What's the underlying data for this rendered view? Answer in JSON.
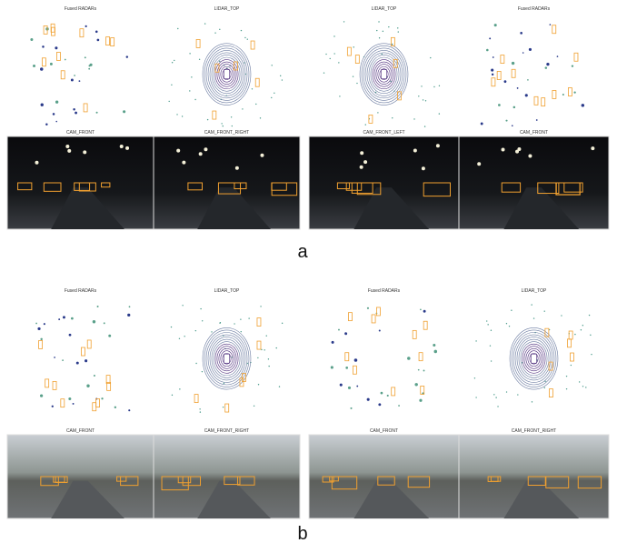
{
  "panels": [
    {
      "label": "a",
      "figures": [
        {
          "plots": [
            "Fused RADARs",
            "LIDAR_TOP"
          ],
          "cameras": [
            "CAM_FRONT",
            "CAM_FRONT_RIGHT"
          ]
        },
        {
          "plots": [
            "LIDAR_TOP",
            "Fused RADARs"
          ],
          "cameras": [
            "CAM_FRONT_LEFT",
            "CAM_FRONT"
          ]
        }
      ]
    },
    {
      "label": "b",
      "figures": [
        {
          "plots": [
            "Fused RADARs",
            "LIDAR_TOP"
          ],
          "cameras": [
            "CAM_FRONT",
            "CAM_FRONT_RIGHT"
          ]
        },
        {
          "plots": [
            "Fused RADARs",
            "LIDAR_TOP"
          ],
          "cameras": [
            "CAM_FRONT",
            "CAM_FRONT_RIGHT"
          ]
        }
      ]
    }
  ]
}
